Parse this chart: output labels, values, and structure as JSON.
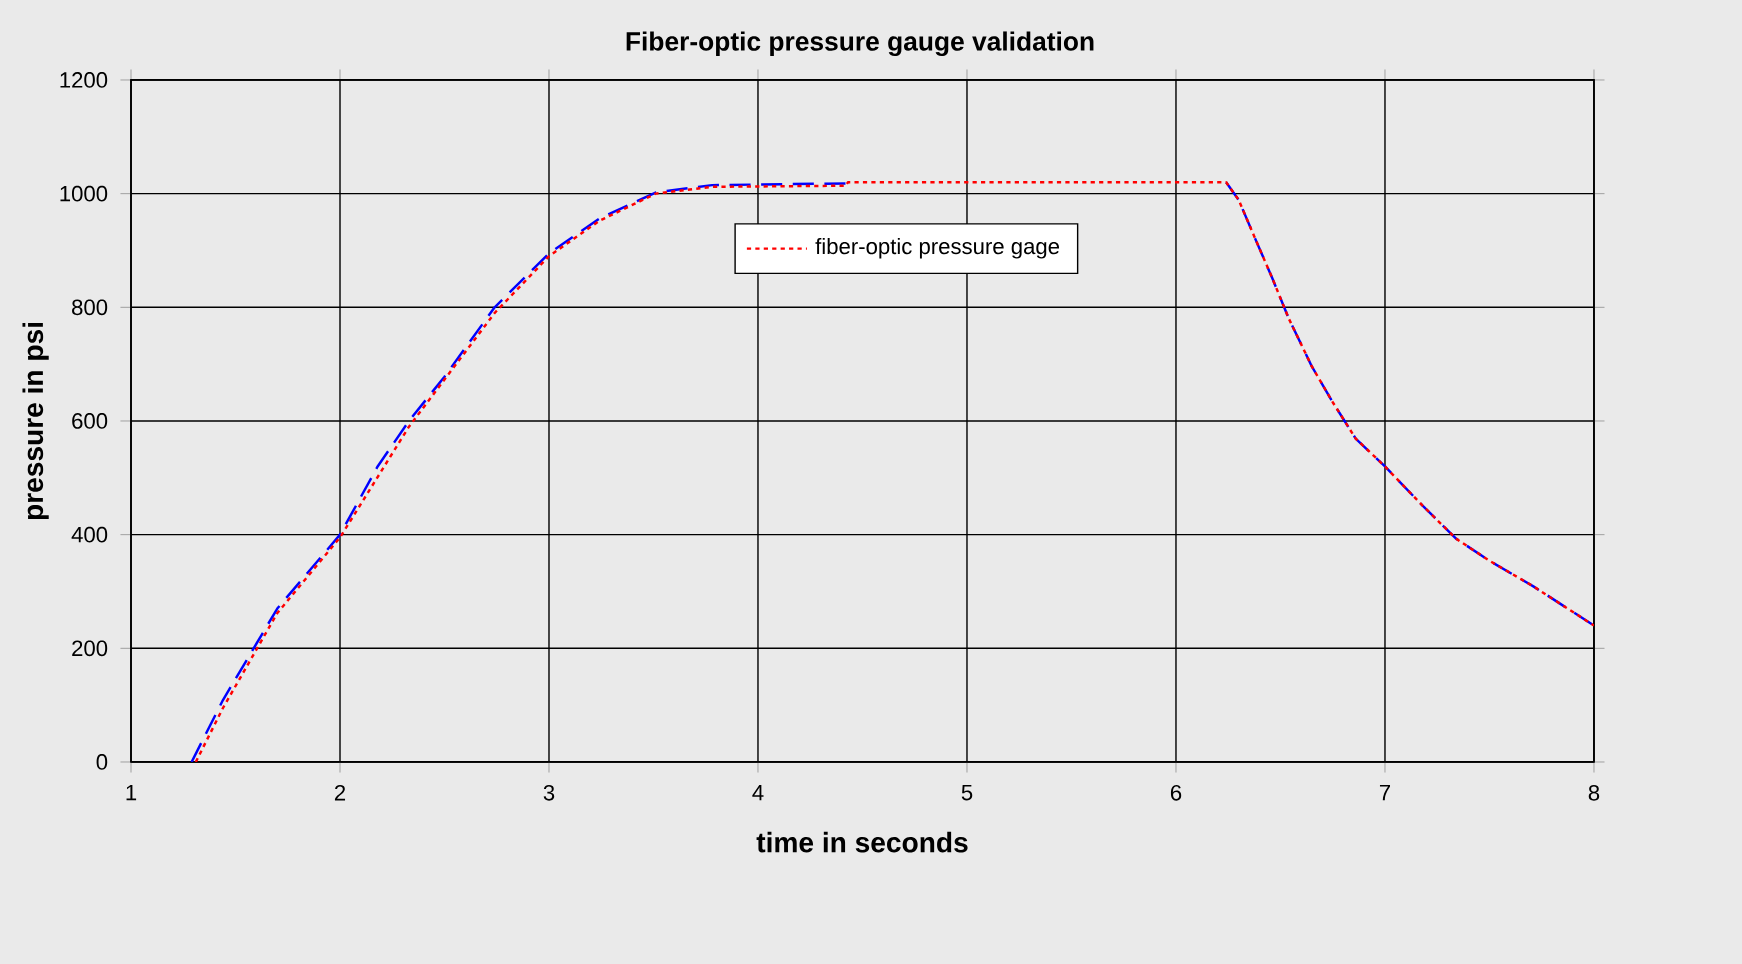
{
  "chart_data": {
    "type": "line",
    "title": "Fiber-optic pressure gauge validation",
    "xlabel": "time in seconds",
    "ylabel": "pressure in psi",
    "xlim": [
      1,
      8
    ],
    "ylim": [
      0,
      1200
    ],
    "xticks": [
      1,
      2,
      3,
      4,
      5,
      6,
      7,
      8
    ],
    "yticks": [
      0,
      200,
      400,
      600,
      800,
      1000,
      1200
    ],
    "grid": true,
    "legend": "top",
    "series": [
      {
        "color": "#0000ff",
        "line_style": "dashed",
        "x": [
          1.29,
          1.44,
          1.7,
          2.0,
          2.18,
          2.33,
          2.5,
          2.74,
          3.0,
          3.24,
          3.51,
          3.78,
          4.42,
          5.3,
          6.24,
          6.3,
          6.38,
          6.46,
          6.54,
          6.65,
          6.75,
          6.86,
          7.0,
          7.18,
          7.34,
          7.5,
          7.71,
          8.0
        ],
        "values": [
          0,
          109,
          270,
          400,
          520,
          600,
          678,
          800,
          895,
          956,
          1002,
          1015,
          1018,
          null,
          1020,
          989,
          920,
          852,
          780,
          696,
          633,
          569,
          520,
          451,
          393,
          354,
          309,
          240
        ]
      },
      {
        "name": "fiber-optic pressure gage",
        "color": "#ff0000",
        "line_style": "dotted",
        "x": [
          1.31,
          1.44,
          1.7,
          2.0,
          2.33,
          2.74,
          3.0,
          3.24,
          3.51,
          3.78,
          4.42,
          4.43,
          6.24,
          6.3,
          6.38,
          6.46,
          6.54,
          6.65,
          6.75,
          6.86,
          7.0,
          7.18,
          7.34,
          7.5,
          7.71,
          8.0
        ],
        "values": [
          0,
          95,
          262,
          395,
          590,
          790,
          890,
          952,
          1000,
          1012,
          1014,
          1020,
          1020,
          989,
          920,
          852,
          780,
          696,
          633,
          569,
          520,
          451,
          393,
          354,
          309,
          240
        ]
      }
    ]
  }
}
